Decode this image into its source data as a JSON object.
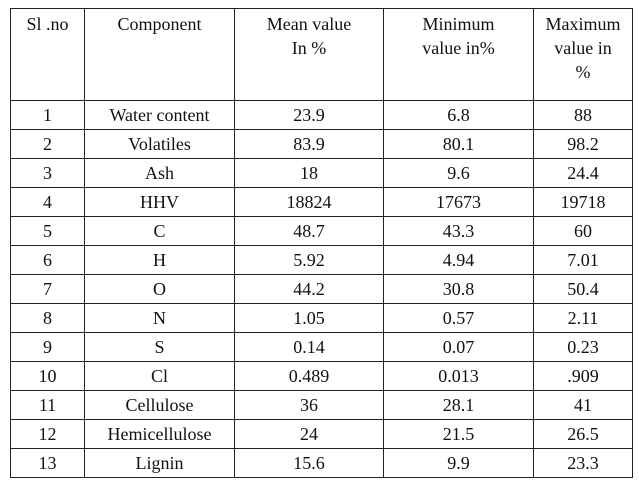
{
  "table": {
    "headers": [
      "Sl .no",
      "Component",
      "Mean value In %",
      "Minimum value in%",
      "Maximum value in %"
    ],
    "header_lines": [
      [
        "Sl .no"
      ],
      [
        "Component"
      ],
      [
        "Mean value",
        "In %"
      ],
      [
        "Minimum",
        "value in%"
      ],
      [
        "Maximum",
        "value in",
        "%"
      ]
    ],
    "rows": [
      [
        "1",
        "Water content",
        "23.9",
        "6.8",
        "88"
      ],
      [
        "2",
        "Volatiles",
        "83.9",
        "80.1",
        "98.2"
      ],
      [
        "3",
        "Ash",
        "18",
        "9.6",
        "24.4"
      ],
      [
        "4",
        "HHV",
        "18824",
        "17673",
        "19718"
      ],
      [
        "5",
        "C",
        "48.7",
        "43.3",
        "60"
      ],
      [
        "6",
        "H",
        "5.92",
        "4.94",
        "7.01"
      ],
      [
        "7",
        "O",
        "44.2",
        "30.8",
        "50.4"
      ],
      [
        "8",
        "N",
        "1.05",
        "0.57",
        "2.11"
      ],
      [
        "9",
        "S",
        "0.14",
        "0.07",
        "0.23"
      ],
      [
        "10",
        "Cl",
        "0.489",
        "0.013",
        ".909"
      ],
      [
        "11",
        "Cellulose",
        "36",
        "28.1",
        "41"
      ],
      [
        "12",
        "Hemicellulose",
        "24",
        "21.5",
        "26.5"
      ],
      [
        "13",
        "Lignin",
        "15.6",
        "9.9",
        "23.3"
      ]
    ]
  }
}
